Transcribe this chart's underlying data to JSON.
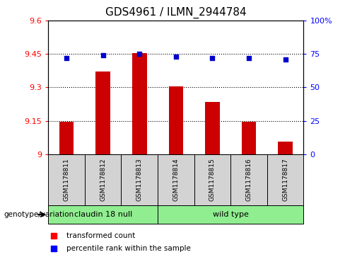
{
  "title": "GDS4961 / ILMN_2944784",
  "samples": [
    "GSM1178811",
    "GSM1178812",
    "GSM1178813",
    "GSM1178814",
    "GSM1178815",
    "GSM1178816",
    "GSM1178817"
  ],
  "red_values": [
    9.145,
    9.37,
    9.455,
    9.305,
    9.235,
    9.145,
    9.055
  ],
  "blue_values": [
    72,
    74,
    75,
    73,
    72,
    72,
    71
  ],
  "ylim_left": [
    9.0,
    9.6
  ],
  "ylim_right": [
    0,
    100
  ],
  "yticks_left": [
    9.0,
    9.15,
    9.3,
    9.45,
    9.6
  ],
  "yticks_right": [
    0,
    25,
    50,
    75,
    100
  ],
  "ytick_labels_left": [
    "9",
    "9.15",
    "9.3",
    "9.45",
    "9.6"
  ],
  "ytick_labels_right": [
    "0",
    "25",
    "50",
    "75",
    "100%"
  ],
  "group1_label": "claudin 18 null",
  "group2_label": "wild type",
  "group_label_text": "genotype/variation",
  "legend_red": "transformed count",
  "legend_blue": "percentile rank within the sample",
  "bar_color": "#cc0000",
  "dot_color": "#0000cc",
  "bar_bottom": 9.0,
  "sample_bg_color": "#d3d3d3",
  "group_bg_color": "#90ee90"
}
